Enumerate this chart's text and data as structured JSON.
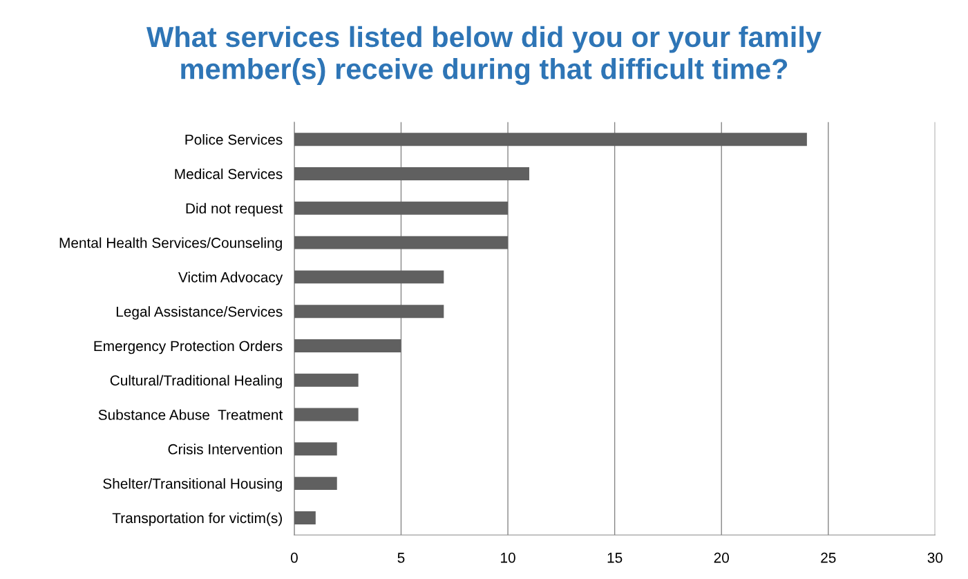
{
  "chart_data": {
    "type": "bar",
    "orientation": "horizontal",
    "title": "What services listed below did you or your family\nmember(s) receive during that difficult time?",
    "categories": [
      "Police Services",
      "Medical Services",
      "Did not request",
      "Mental Health Services/Counseling",
      "Victim Advocacy",
      "Legal Assistance/Services",
      "Emergency Protection Orders",
      "Cultural/Traditional Healing",
      "Substance Abuse  Treatment",
      "Crisis Intervention",
      "Shelter/Transitional Housing",
      "Transportation for victim(s)"
    ],
    "values": [
      24,
      11,
      10,
      10,
      7,
      7,
      5,
      3,
      3,
      2,
      2,
      1
    ],
    "color": "#606060",
    "xlim": [
      0,
      30
    ],
    "xticks": [
      0,
      5,
      10,
      15,
      20,
      25,
      30
    ],
    "grid": "x",
    "legend": false
  }
}
